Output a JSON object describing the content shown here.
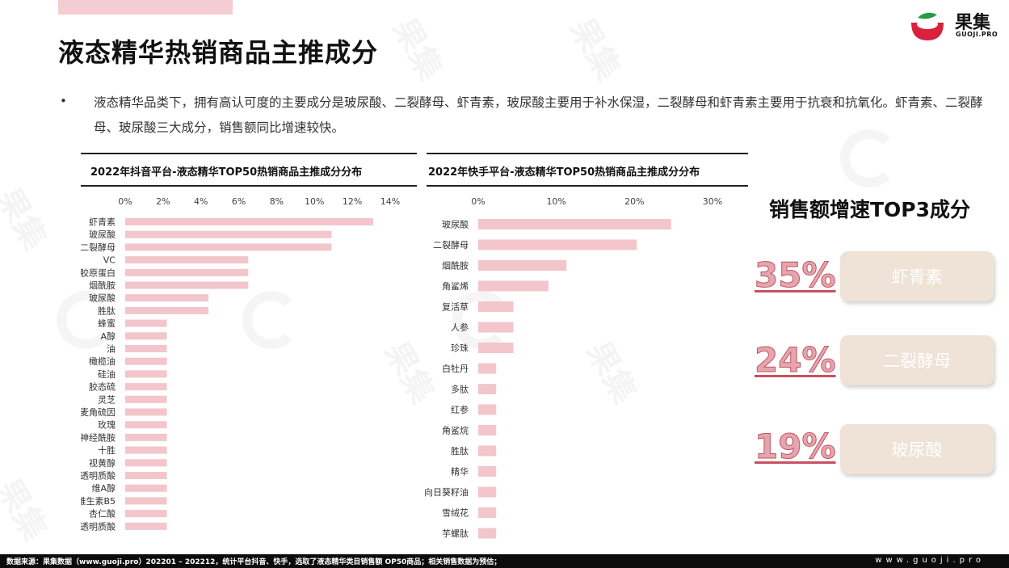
{
  "page": {
    "title": "液态精华热销商品主推成分",
    "bullet": "•",
    "paragraph": "液态精华品类下，拥有高认可度的主要成分是玻尿酸、二裂酵母、虾青素，玻尿酸主要用于补水保湿，二裂酵母和虾青素主要用于抗衰和抗氧化。虾青素、二裂酵母、玻尿酸三大成分，销售额同比增速较快。"
  },
  "logo": {
    "name": "果集",
    "sub": "GUOJI.PRO",
    "colors": {
      "red": "#d8213c",
      "green": "#2a9a4a"
    }
  },
  "watermark": {
    "text": "果集",
    "sub": "GUOJI.PRO"
  },
  "colors": {
    "bar": "#f2c6cb",
    "accent": "#e3a6ae",
    "pill": "#efe2d6"
  },
  "chart_data": [
    {
      "type": "bar",
      "orientation": "horizontal",
      "title": "2022年抖音平台-液态精华TOP50热销商品主推成分分布",
      "xlim": [
        0,
        14
      ],
      "xticks": [
        "0%",
        "2%",
        "4%",
        "6%",
        "8%",
        "10%",
        "12%",
        "14%"
      ],
      "categories": [
        "虾青素",
        "玻尿酸",
        "二裂酵母",
        "VC",
        "胶原蛋白",
        "烟酰胺",
        "玻尿酸",
        "胜肽",
        "蜂蜜",
        "A醇",
        "油",
        "橄榄油",
        "硅油",
        "胶态硫",
        "灵芝",
        "麦角硫因",
        "玫瑰",
        "神经酰胺",
        "十胜",
        "视黄醇",
        "透明质酸",
        "维A醇",
        "维生素B5",
        "杏仁酸",
        "透明质酸"
      ],
      "values": [
        13.1,
        10.9,
        10.9,
        6.5,
        6.5,
        6.5,
        4.4,
        4.4,
        2.2,
        2.2,
        2.2,
        2.2,
        2.2,
        2.2,
        2.2,
        2.2,
        2.2,
        2.2,
        2.2,
        2.2,
        2.2,
        2.2,
        2.2,
        2.2,
        2.2
      ]
    },
    {
      "type": "bar",
      "orientation": "horizontal",
      "title": "2022年快手平台-液态精华TOP50热销商品主推成分分布",
      "xlim": [
        0,
        30
      ],
      "xticks": [
        "0%",
        "10%",
        "20%",
        "30%"
      ],
      "categories": [
        "玻尿酸",
        "二裂酵母",
        "烟酰胺",
        "角鲨烯",
        "复活草",
        "人参",
        "珍珠",
        "白牡丹",
        "多肽",
        "红参",
        "角鲨烷",
        "胜肽",
        "精华",
        "向日葵籽油",
        "雪绒花",
        "芋螺肽"
      ],
      "values": [
        24.7,
        20.3,
        11.3,
        9.0,
        4.5,
        4.5,
        4.5,
        2.3,
        2.3,
        2.3,
        2.3,
        2.3,
        2.3,
        2.3,
        2.3,
        2.3
      ]
    }
  ],
  "side": {
    "title": "销售额增速TOP3成分",
    "items": [
      {
        "pct": "35%",
        "name": "虾青素"
      },
      {
        "pct": "24%",
        "name": "二裂酵母"
      },
      {
        "pct": "19%",
        "name": "玻尿酸"
      }
    ]
  },
  "footer": {
    "source": "数据来源：果集数据（www.guoji.pro）202201 – 202212，统计平台抖音、快手，选取了液态精华类目销售额 OP50商品；相关销售数据为预估；",
    "url": "www.guoji.pro"
  }
}
